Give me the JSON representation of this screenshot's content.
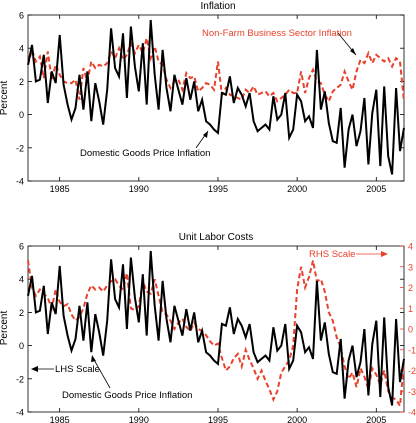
{
  "chart_data": [
    {
      "type": "line",
      "title": "Inflation",
      "ylabel": "Percent",
      "xlabel": "",
      "xlim": [
        1983,
        2006.75
      ],
      "ylim": [
        -4,
        6
      ],
      "x_ticks": [
        1985,
        1990,
        1995,
        2000,
        2005
      ],
      "y_ticks": [
        -4,
        -2,
        0,
        2,
        4,
        6
      ],
      "grid": false,
      "annotations": [
        {
          "text": "Non-Farm Business Sector Inflation",
          "color": "#e8412c"
        },
        {
          "text": "Domestic Goods Price Inflation",
          "color": "#000000"
        }
      ],
      "series": [
        {
          "name": "Domestic Goods Price Inflation",
          "color": "#000000",
          "style": "solid",
          "axis": "left",
          "x": [
            1983.0,
            1983.25,
            1983.5,
            1983.75,
            1984.0,
            1984.25,
            1984.5,
            1984.75,
            1985.0,
            1985.25,
            1985.5,
            1985.75,
            1986.0,
            1986.25,
            1986.5,
            1986.75,
            1987.0,
            1987.25,
            1987.5,
            1987.75,
            1988.0,
            1988.25,
            1988.5,
            1988.75,
            1989.0,
            1989.25,
            1989.5,
            1989.75,
            1990.0,
            1990.25,
            1990.5,
            1990.75,
            1991.0,
            1991.25,
            1991.5,
            1991.75,
            1992.0,
            1992.25,
            1992.5,
            1992.75,
            1993.0,
            1993.25,
            1993.5,
            1993.75,
            1994.0,
            1994.25,
            1994.5,
            1994.75,
            1995.0,
            1995.25,
            1995.5,
            1995.75,
            1996.0,
            1996.25,
            1996.5,
            1996.75,
            1997.0,
            1997.25,
            1997.5,
            1997.75,
            1998.0,
            1998.25,
            1998.5,
            1998.75,
            1999.0,
            1999.25,
            1999.5,
            1999.75,
            2000.0,
            2000.25,
            2000.5,
            2000.75,
            2001.0,
            2001.25,
            2001.5,
            2001.75,
            2002.0,
            2002.25,
            2002.5,
            2002.75,
            2003.0,
            2003.25,
            2003.5,
            2003.75,
            2004.0,
            2004.25,
            2004.5,
            2004.75,
            2005.0,
            2005.25,
            2005.5,
            2005.75,
            2006.0,
            2006.25,
            2006.5,
            2006.75
          ],
          "values": [
            3.0,
            4.2,
            2.0,
            2.1,
            3.6,
            0.7,
            2.6,
            1.9,
            4.8,
            1.8,
            0.6,
            -0.3,
            0.4,
            2.4,
            0.3,
            2.6,
            -0.4,
            1.9,
            0.8,
            -0.6,
            1.5,
            5.2,
            2.8,
            2.3,
            4.9,
            1.0,
            5.3,
            2.9,
            1.4,
            4.3,
            0.6,
            5.7,
            2.4,
            0.3,
            3.9,
            1.6,
            0.2,
            2.4,
            1.5,
            0.6,
            2.2,
            0.9,
            2.0,
            0.2,
            0.9,
            -0.4,
            -0.6,
            -0.9,
            -1.1,
            1.3,
            1.2,
            2.3,
            0.7,
            1.6,
            1.2,
            0.5,
            1.3,
            -0.4,
            -1.0,
            -0.8,
            -0.6,
            -0.9,
            1.1,
            -0.3,
            0.0,
            1.3,
            -1.4,
            -0.9,
            1.2,
            0.8,
            -0.4,
            -0.1,
            -0.8,
            3.9,
            0.3,
            1.4,
            -0.5,
            -1.6,
            -1.7,
            0.4,
            -3.2,
            -0.9,
            0.0,
            -1.9,
            -1.0,
            1.0,
            -3.0,
            0.1,
            1.5,
            -3.1,
            1.7,
            -2.5,
            -3.6,
            1.6,
            -2.2,
            -0.8
          ]
        },
        {
          "name": "Non-Farm Business Sector Inflation",
          "color": "#e8412c",
          "style": "dashed",
          "axis": "left",
          "x": [
            1983.0,
            1983.25,
            1983.5,
            1983.75,
            1984.0,
            1984.25,
            1984.5,
            1984.75,
            1985.0,
            1985.25,
            1985.5,
            1985.75,
            1986.0,
            1986.25,
            1986.5,
            1986.75,
            1987.0,
            1987.25,
            1987.5,
            1987.75,
            1988.0,
            1988.25,
            1988.5,
            1988.75,
            1989.0,
            1989.25,
            1989.5,
            1989.75,
            1990.0,
            1990.25,
            1990.5,
            1990.75,
            1991.0,
            1991.25,
            1991.5,
            1991.75,
            1992.0,
            1992.25,
            1992.5,
            1992.75,
            1993.0,
            1993.25,
            1993.5,
            1993.75,
            1994.0,
            1994.25,
            1994.5,
            1994.75,
            1995.0,
            1995.25,
            1995.5,
            1995.75,
            1996.0,
            1996.25,
            1996.5,
            1996.75,
            1997.0,
            1997.25,
            1997.5,
            1997.75,
            1998.0,
            1998.25,
            1998.5,
            1998.75,
            1999.0,
            1999.25,
            1999.5,
            1999.75,
            2000.0,
            2000.25,
            2000.5,
            2000.75,
            2001.0,
            2001.25,
            2001.5,
            2001.75,
            2002.0,
            2002.25,
            2002.5,
            2002.75,
            2003.0,
            2003.25,
            2003.5,
            2003.75,
            2004.0,
            2004.25,
            2004.5,
            2004.75,
            2005.0,
            2005.25,
            2005.5,
            2005.75,
            2006.0,
            2006.25,
            2006.5,
            2006.75
          ],
          "values": [
            3.0,
            3.9,
            3.2,
            3.5,
            2.2,
            3.8,
            2.1,
            3.0,
            2.4,
            2.0,
            1.9,
            1.9,
            2.1,
            0.9,
            2.8,
            2.0,
            3.2,
            2.8,
            3.0,
            2.9,
            3.1,
            3.8,
            3.4,
            4.0,
            3.3,
            3.6,
            4.3,
            3.7,
            4.2,
            3.7,
            4.6,
            3.4,
            4.1,
            3.2,
            3.0,
            2.1,
            1.6,
            2.0,
            2.1,
            1.5,
            2.5,
            2.2,
            2.3,
            1.4,
            1.6,
            1.9,
            1.8,
            1.5,
            3.2,
            1.2,
            1.6,
            1.2,
            1.1,
            1.0,
            0.9,
            1.5,
            1.3,
            1.7,
            1.2,
            1.3,
            1.4,
            1.1,
            1.3,
            0.8,
            1.0,
            1.2,
            1.5,
            1.3,
            1.3,
            2.6,
            1.3,
            2.2,
            2.7,
            2.0,
            1.9,
            1.2,
            0.8,
            1.4,
            1.6,
            1.8,
            2.6,
            2.0,
            1.5,
            2.6,
            3.3,
            3.1,
            3.7,
            3.1,
            3.6,
            3.4,
            3.2,
            3.4,
            2.9,
            3.4,
            3.2,
            0.8
          ]
        }
      ]
    },
    {
      "type": "line",
      "title": "Unit Labor Costs",
      "ylabel": "Percent",
      "xlabel": "",
      "xlim": [
        1983,
        2006.75
      ],
      "ylim": [
        -4,
        6
      ],
      "y2lim": [
        -4,
        4
      ],
      "x_ticks": [
        1985,
        1990,
        1995,
        2000,
        2005
      ],
      "y_ticks": [
        -4,
        -2,
        0,
        2,
        4,
        6
      ],
      "y2_ticks": [
        -4,
        -3,
        -2,
        -1,
        0,
        1,
        2,
        3,
        4
      ],
      "grid": false,
      "annotations": [
        {
          "text": "RHS Scale",
          "color": "#e8412c"
        },
        {
          "text": "LHS Scale",
          "color": "#000000"
        },
        {
          "text": "Domestic Goods Price Inflation",
          "color": "#000000"
        }
      ],
      "series": [
        {
          "name": "Domestic Goods Price Inflation",
          "color": "#000000",
          "style": "solid",
          "axis": "left",
          "x": [
            1983.0,
            1983.25,
            1983.5,
            1983.75,
            1984.0,
            1984.25,
            1984.5,
            1984.75,
            1985.0,
            1985.25,
            1985.5,
            1985.75,
            1986.0,
            1986.25,
            1986.5,
            1986.75,
            1987.0,
            1987.25,
            1987.5,
            1987.75,
            1988.0,
            1988.25,
            1988.5,
            1988.75,
            1989.0,
            1989.25,
            1989.5,
            1989.75,
            1990.0,
            1990.25,
            1990.5,
            1990.75,
            1991.0,
            1991.25,
            1991.5,
            1991.75,
            1992.0,
            1992.25,
            1992.5,
            1992.75,
            1993.0,
            1993.25,
            1993.5,
            1993.75,
            1994.0,
            1994.25,
            1994.5,
            1994.75,
            1995.0,
            1995.25,
            1995.5,
            1995.75,
            1996.0,
            1996.25,
            1996.5,
            1996.75,
            1997.0,
            1997.25,
            1997.5,
            1997.75,
            1998.0,
            1998.25,
            1998.5,
            1998.75,
            1999.0,
            1999.25,
            1999.5,
            1999.75,
            2000.0,
            2000.25,
            2000.5,
            2000.75,
            2001.0,
            2001.25,
            2001.5,
            2001.75,
            2002.0,
            2002.25,
            2002.5,
            2002.75,
            2003.0,
            2003.25,
            2003.5,
            2003.75,
            2004.0,
            2004.25,
            2004.5,
            2004.75,
            2005.0,
            2005.25,
            2005.5,
            2005.75,
            2006.0,
            2006.25,
            2006.5,
            2006.75
          ],
          "values": [
            3.0,
            4.2,
            2.0,
            2.1,
            3.6,
            0.7,
            2.6,
            1.9,
            4.8,
            1.8,
            0.6,
            -0.3,
            0.4,
            2.4,
            0.3,
            2.6,
            -0.4,
            1.9,
            0.8,
            -0.6,
            1.5,
            5.2,
            2.8,
            2.3,
            4.9,
            1.0,
            5.3,
            2.9,
            1.4,
            4.3,
            0.6,
            5.7,
            2.4,
            0.3,
            3.9,
            1.6,
            0.2,
            2.4,
            1.5,
            0.6,
            2.2,
            0.9,
            2.0,
            0.2,
            0.9,
            -0.4,
            -0.6,
            -0.9,
            -1.1,
            1.3,
            1.2,
            2.3,
            0.7,
            1.6,
            1.2,
            0.5,
            1.3,
            -0.4,
            -1.0,
            -0.8,
            -0.6,
            -0.9,
            1.1,
            -0.3,
            0.0,
            1.3,
            -1.4,
            -0.9,
            1.2,
            0.8,
            -0.4,
            -0.1,
            -0.8,
            3.9,
            0.3,
            1.4,
            -0.5,
            -1.6,
            -1.7,
            0.4,
            -3.2,
            -0.9,
            0.0,
            -1.9,
            -1.0,
            1.0,
            -3.0,
            0.1,
            1.5,
            -3.1,
            1.7,
            -2.5,
            -3.6,
            1.6,
            -2.2,
            -0.8
          ]
        },
        {
          "name": "Unit Labor Costs",
          "color": "#e8412c",
          "style": "dashed",
          "axis": "right",
          "x": [
            1983.0,
            1983.25,
            1983.5,
            1983.75,
            1984.0,
            1984.25,
            1984.5,
            1984.75,
            1985.0,
            1985.25,
            1985.5,
            1985.75,
            1986.0,
            1986.25,
            1986.5,
            1986.75,
            1987.0,
            1987.25,
            1987.5,
            1987.75,
            1988.0,
            1988.25,
            1988.5,
            1988.75,
            1989.0,
            1989.25,
            1989.5,
            1989.75,
            1990.0,
            1990.25,
            1990.5,
            1990.75,
            1991.0,
            1991.25,
            1991.5,
            1991.75,
            1992.0,
            1992.25,
            1992.5,
            1992.75,
            1993.0,
            1993.25,
            1993.5,
            1993.75,
            1994.0,
            1994.25,
            1994.5,
            1994.75,
            1995.0,
            1995.25,
            1995.5,
            1995.75,
            1996.0,
            1996.25,
            1996.5,
            1996.75,
            1997.0,
            1997.25,
            1997.5,
            1997.75,
            1998.0,
            1998.25,
            1998.5,
            1998.75,
            1999.0,
            1999.25,
            1999.5,
            1999.75,
            2000.0,
            2000.25,
            2000.5,
            2000.75,
            2001.0,
            2001.25,
            2001.5,
            2001.75,
            2002.0,
            2002.25,
            2002.5,
            2002.75,
            2003.0,
            2003.25,
            2003.5,
            2003.75,
            2004.0,
            2004.25,
            2004.5,
            2004.75,
            2005.0,
            2005.25,
            2005.5,
            2005.75,
            2006.0,
            2006.25,
            2006.5,
            2006.75
          ],
          "values": [
            3.3,
            2.0,
            1.6,
            1.9,
            1.7,
            1.5,
            1.0,
            1.9,
            1.3,
            1.1,
            1.2,
            0.7,
            0.4,
            0.6,
            1.0,
            1.7,
            2.1,
            1.9,
            2.0,
            1.8,
            2.1,
            2.3,
            2.4,
            2.1,
            1.9,
            2.7,
            1.0,
            0.9,
            1.1,
            2.3,
            1.8,
            1.7,
            2.4,
            1.6,
            0.8,
            0.7,
            0.4,
            0.0,
            0.3,
            0.5,
            0.1,
            -0.1,
            0.3,
            0.0,
            -0.1,
            -0.3,
            -0.6,
            -0.8,
            -0.7,
            -1.4,
            -2.0,
            -1.8,
            -1.4,
            -1.2,
            -1.8,
            -1.0,
            -1.5,
            -1.9,
            -2.4,
            -2.0,
            -2.5,
            -2.9,
            -3.4,
            -3.0,
            -2.1,
            -1.8,
            -1.5,
            -0.8,
            1.9,
            3.0,
            2.0,
            2.5,
            3.3,
            2.3,
            2.4,
            1.8,
            0.8,
            0.4,
            -0.4,
            -0.9,
            -1.8,
            -2.4,
            -2.1,
            -2.8,
            -1.9,
            -2.3,
            -2.9,
            -1.9,
            -2.2,
            -2.7,
            -2.0,
            -3.0,
            -3.3,
            -3.4,
            -3.7,
            -1.6
          ]
        }
      ]
    }
  ]
}
